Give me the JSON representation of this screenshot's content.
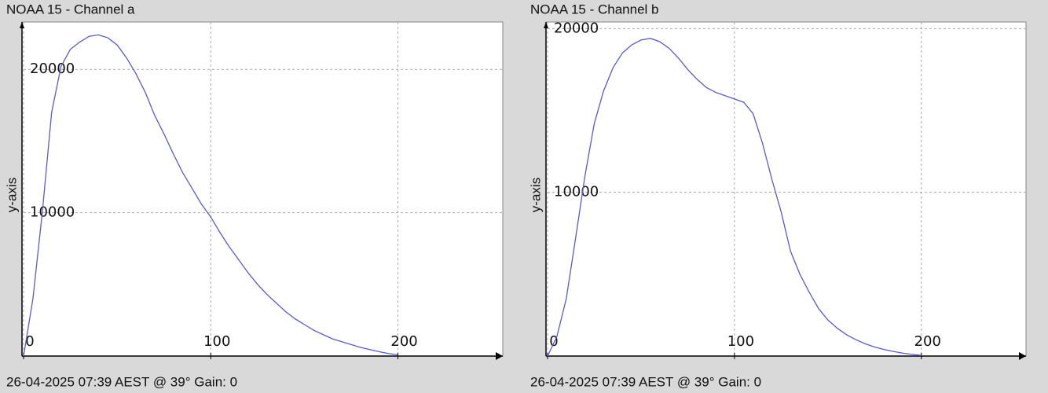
{
  "chart_data": [
    {
      "type": "line",
      "title": "NOAA 15 - Channel a",
      "y_label": "y-axis",
      "footer": "26-04-2025 07:39 AEST @ 39° Gain: 0",
      "x": [
        0,
        5,
        10,
        15,
        20,
        25,
        30,
        35,
        40,
        45,
        50,
        55,
        60,
        65,
        70,
        75,
        80,
        85,
        90,
        95,
        100,
        105,
        110,
        115,
        120,
        125,
        130,
        135,
        140,
        145,
        150,
        155,
        160,
        165,
        170,
        175,
        180,
        185,
        190,
        195,
        200
      ],
      "series": [
        {
          "name": "Channel a",
          "color": "#5a5ad2",
          "values": [
            0,
            4000,
            10000,
            17000,
            20200,
            21400,
            21900,
            22300,
            22400,
            22200,
            21700,
            20800,
            19700,
            18400,
            16800,
            15500,
            14100,
            12800,
            11700,
            10600,
            9700,
            8600,
            7600,
            6700,
            5800,
            5000,
            4300,
            3700,
            3100,
            2600,
            2200,
            1800,
            1500,
            1200,
            1000,
            800,
            600,
            450,
            300,
            180,
            80
          ]
        }
      ],
      "xlim": [
        0,
        256
      ],
      "ylim": [
        0,
        23300
      ],
      "xticks": [
        0,
        100,
        200
      ],
      "yticks": [
        10000,
        20000
      ],
      "grid": true
    },
    {
      "type": "line",
      "title": "NOAA 15 - Channel b",
      "y_label": "y-axis",
      "footer": "26-04-2025 07:39 AEST @ 39° Gain: 0",
      "x": [
        0,
        5,
        10,
        15,
        20,
        25,
        30,
        35,
        40,
        45,
        50,
        55,
        60,
        65,
        70,
        75,
        80,
        85,
        90,
        95,
        100,
        105,
        110,
        115,
        120,
        125,
        130,
        135,
        140,
        145,
        150,
        155,
        160,
        165,
        170,
        175,
        180,
        185,
        190,
        195,
        200
      ],
      "series": [
        {
          "name": "Channel b",
          "color": "#5a5ad2",
          "values": [
            0,
            1200,
            3500,
            7200,
            11000,
            14200,
            16200,
            17600,
            18500,
            19000,
            19300,
            19400,
            19200,
            18800,
            18200,
            17500,
            16900,
            16400,
            16100,
            15900,
            15700,
            15500,
            14800,
            13000,
            10800,
            8800,
            6400,
            5000,
            3900,
            2900,
            2200,
            1700,
            1300,
            1000,
            750,
            550,
            400,
            280,
            180,
            100,
            40
          ]
        }
      ],
      "xlim": [
        0,
        256
      ],
      "ylim": [
        0,
        20400
      ],
      "xticks": [
        0,
        100,
        200
      ],
      "yticks": [
        10000,
        20000
      ],
      "grid": true
    }
  ]
}
